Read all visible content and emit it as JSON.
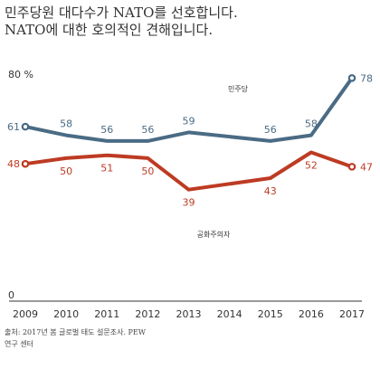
{
  "title": {
    "line1": "민주당원 대다수가 NATO를 선호합니다.",
    "line2": "NATO에 대한 호의적인 견해입니다."
  },
  "chart_data": {
    "type": "line",
    "x": [
      "2009",
      "2010",
      "2011",
      "2012",
      "2013",
      "2014",
      "2015",
      "2016",
      "2017"
    ],
    "x_numeric": [
      2009,
      2010,
      2011,
      2012,
      2013,
      2014,
      2015,
      2016,
      2017
    ],
    "ylim": [
      0,
      80
    ],
    "y_ticks": [
      0,
      80
    ],
    "y_top_label": "80 %",
    "y_bottom_label": "0",
    "grid": false,
    "series": [
      {
        "name": "민주당",
        "color": "#4a6b84",
        "x": [
          2009,
          2010,
          2011,
          2012,
          2013,
          2015,
          2016,
          2017
        ],
        "values": [
          61,
          58,
          56,
          56,
          59,
          56,
          58,
          78
        ],
        "labels": [
          "61",
          "58",
          "56",
          "56",
          "59",
          "56",
          "58",
          "78"
        ],
        "label_position": "above"
      },
      {
        "name": "공화주의자",
        "color": "#bd3b23",
        "x": [
          2009,
          2010,
          2011,
          2012,
          2013,
          2015,
          2016,
          2017
        ],
        "values": [
          48,
          50,
          51,
          50,
          39,
          43,
          52,
          47
        ],
        "labels": [
          "48",
          "50",
          "51",
          "50",
          "39",
          "43",
          "52",
          "47"
        ],
        "label_position": "below"
      }
    ]
  },
  "footer": {
    "line1": "출처: 2017년 봄 글로벌 태도 설문조사. PEW",
    "line2": "연구 센터"
  }
}
